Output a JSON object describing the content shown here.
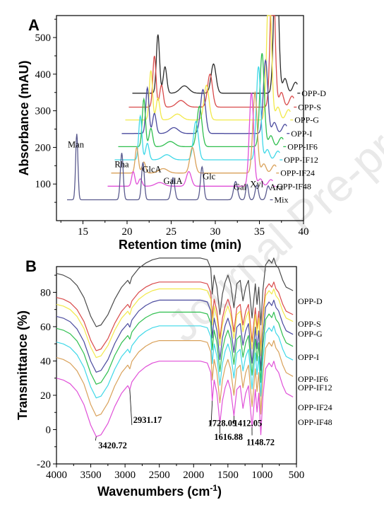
{
  "watermark": "Journal Pre-proof",
  "chart_data": [
    {
      "type": "line",
      "panel": "A",
      "xlabel": "Retention time (min)",
      "ylabel": "Absorbance (mAU)",
      "xlim": [
        12,
        40
      ],
      "ylim": [
        0,
        560
      ],
      "xticks": [
        15,
        20,
        25,
        30,
        35,
        40
      ],
      "yticks": [
        100,
        200,
        300,
        400,
        500
      ],
      "legend": "right",
      "peak_labels": [
        {
          "text": "Man",
          "x": 14.2,
          "y": 200
        },
        {
          "text": "Rha",
          "x": 19.4,
          "y": 146
        },
        {
          "text": "GlcA",
          "x": 22.8,
          "y": 132
        },
        {
          "text": "GalA",
          "x": 25.2,
          "y": 100
        },
        {
          "text": "Glc",
          "x": 29.3,
          "y": 113
        },
        {
          "text": "Gal",
          "x": 32.8,
          "y": 84
        },
        {
          "text": "Xyl",
          "x": 34.7,
          "y": 92
        },
        {
          "text": "Ara",
          "x": 36.9,
          "y": 83
        }
      ],
      "series": [
        {
          "name": "OPP-D",
          "color": "#2b2b2b",
          "x_shift": 3.6,
          "x_end": 39.3,
          "baseline": 348,
          "peaks": [
            [
              19.9,
              160,
              0.18
            ],
            [
              20.7,
              72,
              0.2
            ],
            [
              22.9,
              20,
              0.5
            ],
            [
              26.2,
              80,
              0.28
            ],
            [
              33.3,
              440,
              0.25
            ],
            [
              34.3,
              40,
              0.25
            ],
            [
              35.5,
              30,
              0.3
            ]
          ]
        },
        {
          "name": "OPP-S",
          "color": "#d94a4a",
          "x_shift": 3.2,
          "x_end": 38.9,
          "baseline": 310,
          "peaks": [
            [
              19.9,
              140,
              0.18
            ],
            [
              20.7,
              60,
              0.2
            ],
            [
              22.9,
              18,
              0.5
            ],
            [
              26.2,
              90,
              0.28
            ],
            [
              33.3,
              410,
              0.25
            ],
            [
              34.3,
              40,
              0.25
            ],
            [
              35.5,
              30,
              0.3
            ]
          ]
        },
        {
          "name": "OPP-G",
          "color": "#f2e94a",
          "x_shift": 2.8,
          "x_end": 38.5,
          "baseline": 275,
          "peaks": [
            [
              19.9,
              135,
              0.18
            ],
            [
              20.7,
              60,
              0.2
            ],
            [
              22.9,
              16,
              0.5
            ],
            [
              26.2,
              95,
              0.28
            ],
            [
              33.3,
              400,
              0.25
            ],
            [
              34.3,
              35,
              0.25
            ],
            [
              35.5,
              28,
              0.3
            ]
          ]
        },
        {
          "name": "OPP-I",
          "color": "#4a4a9e",
          "x_shift": 2.4,
          "x_end": 38.1,
          "baseline": 238,
          "peaks": [
            [
              19.9,
              125,
              0.18
            ],
            [
              20.7,
              55,
              0.2
            ],
            [
              22.9,
              16,
              0.5
            ],
            [
              26.2,
              120,
              0.28
            ],
            [
              33.3,
              200,
              0.25
            ],
            [
              34.3,
              30,
              0.25
            ],
            [
              35.5,
              25,
              0.3
            ]
          ]
        },
        {
          "name": "OPP-IF6",
          "color": "#2fbf4f",
          "x_shift": 2.0,
          "x_end": 37.7,
          "baseline": 202,
          "peaks": [
            [
              19.9,
              130,
              0.18
            ],
            [
              20.7,
              50,
              0.2
            ],
            [
              22.9,
              14,
              0.5
            ],
            [
              26.2,
              110,
              0.28
            ],
            [
              33.3,
              255,
              0.25
            ],
            [
              34.3,
              30,
              0.25
            ],
            [
              35.5,
              25,
              0.3
            ]
          ]
        },
        {
          "name": "OPP-IF12",
          "color": "#3fd8e8",
          "x_shift": 1.6,
          "x_end": 37.3,
          "baseline": 166,
          "peaks": [
            [
              19.9,
              120,
              0.18
            ],
            [
              20.7,
              45,
              0.2
            ],
            [
              22.9,
              14,
              0.5
            ],
            [
              26.2,
              105,
              0.28
            ],
            [
              33.3,
              255,
              0.25
            ],
            [
              34.3,
              28,
              0.25
            ],
            [
              35.5,
              24,
              0.3
            ]
          ]
        },
        {
          "name": "OPP-IF24",
          "color": "#d9a15a",
          "x_shift": 1.2,
          "x_end": 36.9,
          "baseline": 130,
          "peaks": [
            [
              19.9,
              70,
              0.18
            ],
            [
              20.7,
              30,
              0.2
            ],
            [
              22.9,
              12,
              0.5
            ],
            [
              26.2,
              70,
              0.28
            ],
            [
              33.3,
              220,
              0.25
            ],
            [
              34.3,
              25,
              0.25
            ],
            [
              35.5,
              22,
              0.3
            ]
          ]
        },
        {
          "name": "OPP-IF48",
          "color": "#e04fd8",
          "x_shift": 0.8,
          "x_end": 36.5,
          "baseline": 94,
          "peaks": [
            [
              19.9,
              40,
              0.18
            ],
            [
              20.7,
              20,
              0.2
            ],
            [
              22.9,
              10,
              0.5
            ],
            [
              26.2,
              40,
              0.28
            ],
            [
              33.3,
              255,
              0.25
            ],
            [
              34.3,
              20,
              0.25
            ],
            [
              35.5,
              18,
              0.3
            ]
          ]
        },
        {
          "name": "Mix",
          "color": "#5a5a8e",
          "x_shift": 0,
          "x_start": 13.2,
          "x_end": 36.2,
          "baseline": 57,
          "peaks": [
            [
              14.3,
              180,
              0.13
            ],
            [
              19.4,
              128,
              0.16
            ],
            [
              21.8,
              102,
              0.16
            ],
            [
              25.2,
              60,
              0.2
            ],
            [
              28.5,
              90,
              0.18
            ],
            [
              32.3,
              50,
              0.22
            ],
            [
              33.6,
              42,
              0.15
            ],
            [
              34.7,
              40,
              0.18
            ],
            [
              36.0,
              38,
              0.2
            ]
          ]
        }
      ]
    },
    {
      "type": "line",
      "panel": "B",
      "xlabel": "Wavenumbers (cm-1)",
      "ylabel": "Transmittance (%)",
      "xlim": [
        4000,
        500
      ],
      "ylim": [
        -20,
        95
      ],
      "xticks": [
        4000,
        3500,
        3000,
        2500,
        2000,
        1500,
        1000,
        500
      ],
      "yticks": [
        -20,
        0,
        20,
        40,
        60,
        80
      ],
      "legend": "right",
      "annotations": [
        {
          "text": "3420.72",
          "x": 3420.72
        },
        {
          "text": "2931.17",
          "x": 2931.17
        },
        {
          "text": "1728.09",
          "x": 1728.09
        },
        {
          "text": "1616.88",
          "x": 1616.88
        },
        {
          "text": "1412.05",
          "x": 1412.05
        },
        {
          "text": "1148.72",
          "x": 1148.72
        }
      ],
      "template": {
        "x": [
          4000,
          3900,
          3800,
          3700,
          3600,
          3500,
          3420,
          3350,
          3250,
          3150,
          3050,
          2960,
          2930,
          2900,
          2800,
          2700,
          2600,
          2500,
          2400,
          2300,
          2200,
          2100,
          2000,
          1900,
          1800,
          1750,
          1728,
          1700,
          1660,
          1617,
          1580,
          1540,
          1500,
          1460,
          1412,
          1370,
          1320,
          1280,
          1240,
          1200,
          1148,
          1100,
          1075,
          1050,
          1020,
          990,
          950,
          900,
          860,
          830,
          800,
          760,
          700,
          650,
          600,
          550
        ],
        "y": [
          0,
          1,
          3,
          7,
          14,
          25,
          31,
          30,
          24,
          15,
          8,
          4,
          6,
          2,
          -3,
          -6,
          -8,
          -9,
          -9,
          -9,
          -9,
          -9,
          -9,
          -9,
          -8,
          -3,
          12,
          1,
          8,
          24,
          12,
          5,
          1,
          6,
          20,
          6,
          4,
          16,
          8,
          4,
          26,
          6,
          18,
          8,
          30,
          10,
          -5,
          -8,
          -6,
          -9,
          -5,
          -3,
          4,
          8,
          9,
          10
        ]
      },
      "series": [
        {
          "name": "OPP-D",
          "color": "#4a4a4a",
          "offset": 91,
          "scale": 1.0
        },
        {
          "name": "OPP-S",
          "color": "#d94a4a",
          "offset": 77,
          "scale": 1.0
        },
        {
          "name": "OPP-G",
          "color": "#f2e94a",
          "offset": 73,
          "scale": 1.0
        },
        {
          "name": "OPP-I",
          "color": "#4a4a9e",
          "offset": 66,
          "scale": 1.05
        },
        {
          "name": "OPP-IF6",
          "color": "#2fbf4f",
          "offset": 59,
          "scale": 1.05
        },
        {
          "name": "OPP-IF12",
          "color": "#3fd8e8",
          "offset": 51,
          "scale": 1.05
        },
        {
          "name": "OPP-IF24",
          "color": "#d9a15a",
          "offset": 42,
          "scale": 1.1
        },
        {
          "name": "OPP-IF48",
          "color": "#e04fd8",
          "offset": 30,
          "scale": 1.1
        }
      ]
    }
  ]
}
